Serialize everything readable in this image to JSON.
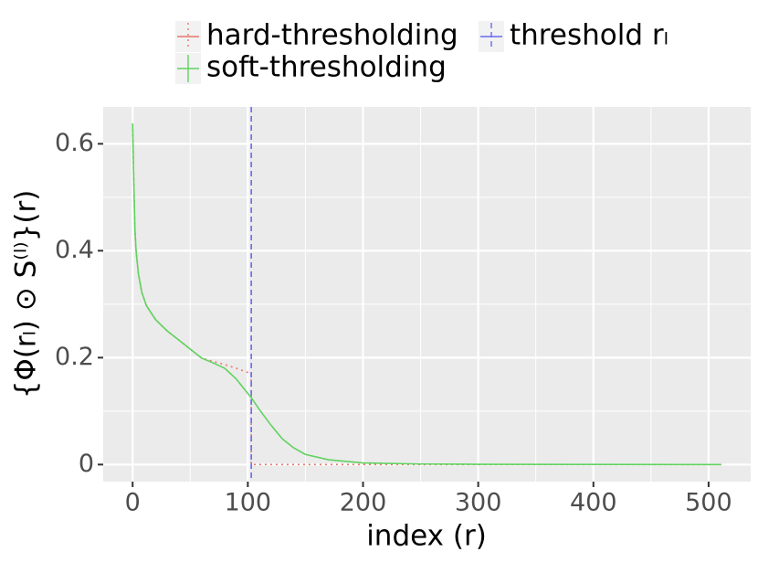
{
  "chart_data": {
    "type": "line",
    "xlabel": "index (r)",
    "ylabel": "{Φ(rₗ) ⊙ S⁽ˡ⁾}(r)",
    "xlim": [
      -25.55,
      536.55
    ],
    "xticks": [
      0,
      100,
      200,
      300,
      400,
      500
    ],
    "ylim": [
      -0.0319,
      0.669
    ],
    "yticks": [
      0,
      0.2,
      0.4,
      0.6
    ],
    "grid": true,
    "legend": "top",
    "series": [
      {
        "name": "hard-thresholding",
        "color": "#e8766d",
        "linestyle": "dotted",
        "x": [
          0,
          1,
          2,
          3,
          5,
          8,
          12,
          20,
          30,
          40,
          50,
          60,
          70,
          80,
          90,
          103,
          103,
          511
        ],
        "values": [
          0.638,
          0.53,
          0.44,
          0.4,
          0.357,
          0.322,
          0.297,
          0.271,
          0.25,
          0.233,
          0.216,
          0.199,
          0.193,
          0.187,
          0.18,
          0.17,
          0,
          0
        ]
      },
      {
        "name": "soft-thresholding",
        "color": "#5fd35f",
        "linestyle": "solid",
        "x": [
          0,
          1,
          2,
          3,
          5,
          8,
          12,
          20,
          30,
          40,
          50,
          60,
          70,
          80,
          90,
          103,
          110,
          120,
          130,
          140,
          150,
          170,
          200,
          250,
          300,
          400,
          511
        ],
        "values": [
          0.638,
          0.53,
          0.44,
          0.4,
          0.357,
          0.322,
          0.297,
          0.271,
          0.25,
          0.233,
          0.216,
          0.199,
          0.19,
          0.18,
          0.16,
          0.125,
          0.103,
          0.074,
          0.048,
          0.031,
          0.019,
          0.009,
          0.003,
          0.001,
          0.0005,
          0.0002,
          0
        ]
      }
    ],
    "threshold": {
      "name": "threshold rₗ",
      "color": "#6a6af0",
      "linestyle": "dashed",
      "x": 103
    }
  }
}
